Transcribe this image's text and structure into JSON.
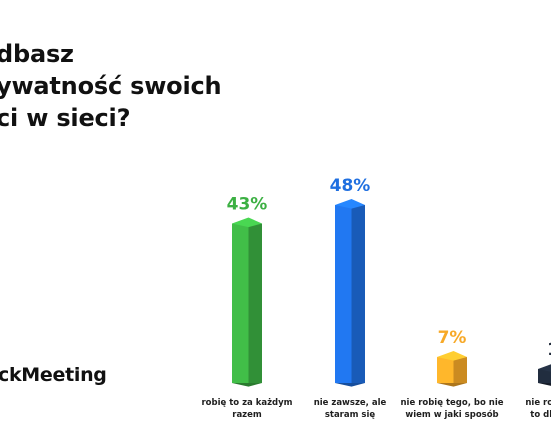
{
  "title_lines": [
    "dbasz",
    "ywatność swoich",
    "ci w sieci?"
  ],
  "brand": "ckMeeting",
  "chart_data": {
    "type": "bar",
    "title": "dbasz ywatność swoich ci w sieci?",
    "categories": [
      "robię to za każdym razem",
      "nie zawsze, ale staram się",
      "nie robię tego, bo nie wiem w jaki sposób",
      "nie robię te to dla mn"
    ],
    "values": [
      43,
      48,
      7,
      1
    ],
    "value_labels": [
      "43%",
      "48%",
      "7%",
      "1"
    ],
    "category_label_lines": [
      [
        "robię to za każdym",
        "razem"
      ],
      [
        "nie zawsze, ale",
        "staram się"
      ],
      [
        "nie robię tego, bo nie",
        "wiem w jaki sposób"
      ],
      [
        "nie robię te",
        "to dla mn"
      ]
    ],
    "ylim": [
      0,
      48
    ],
    "grid": false,
    "legend": "none"
  },
  "colors": {
    "series": [
      "#3cb043",
      "#1f6fe0",
      "#f7a928",
      "#1f2a3a"
    ],
    "value_labels": [
      "#3cb043",
      "#1f6fe0",
      "#f7a928",
      "#1f2a3a"
    ],
    "title": "#111111",
    "labels": "#1f1f1f"
  }
}
